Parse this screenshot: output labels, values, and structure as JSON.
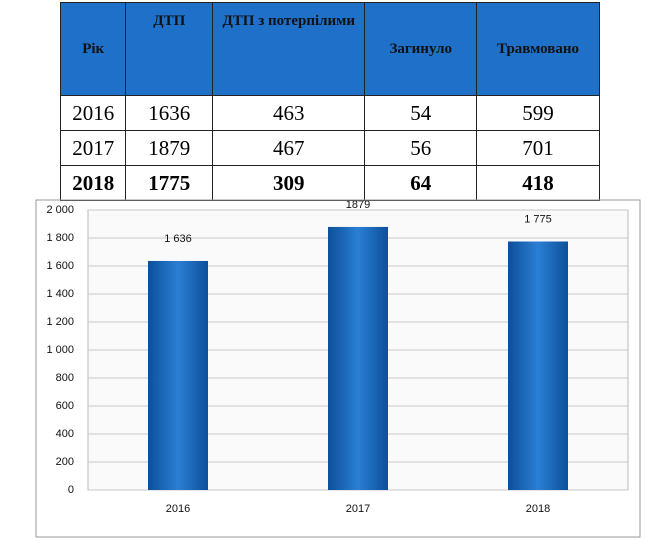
{
  "table": {
    "header": [
      "Рік",
      "ДТП",
      "ДТП з потерпілими",
      "Загинуло",
      "Травмовано"
    ],
    "rows": [
      [
        2016,
        1636,
        463,
        54,
        599
      ],
      [
        2017,
        1879,
        467,
        56,
        701
      ],
      [
        2018,
        1775,
        309,
        64,
        418
      ]
    ]
  },
  "chart_data": {
    "type": "bar",
    "categories": [
      "2016",
      "2017",
      "2018"
    ],
    "values": [
      1636,
      1879,
      1775
    ],
    "value_labels": [
      "1 636",
      "1879",
      "1 775"
    ],
    "color": "#2a7fd4",
    "ylim": [
      0,
      2000
    ],
    "yticks": [
      0,
      200,
      400,
      600,
      800,
      {
        "value": 1000,
        "label": "1 000"
      },
      {
        "value": 1200,
        "label": "1 200"
      },
      {
        "value": 1400,
        "label": "1 400"
      },
      {
        "value": 1600,
        "label": "1 600"
      },
      {
        "value": 1800,
        "label": "1 800"
      },
      {
        "value": 2000,
        "label": "2 000"
      }
    ],
    "grid": true
  }
}
